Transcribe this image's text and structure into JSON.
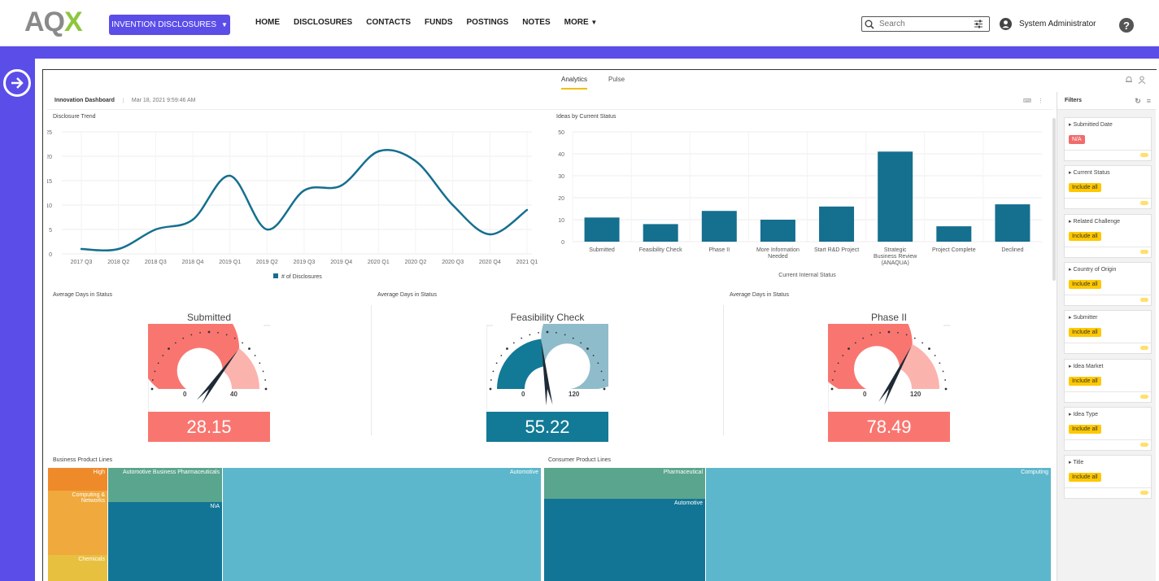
{
  "header": {
    "logo": "AQX",
    "app_button": "INVENTION DISCLOSURES",
    "nav": [
      "HOME",
      "DISCLOSURES",
      "CONTACTS",
      "FUNDS",
      "POSTINGS",
      "NOTES",
      "MORE"
    ],
    "search_placeholder": "Search",
    "user": "System Administrator"
  },
  "tabs": {
    "analytics": "Analytics",
    "pulse": "Pulse"
  },
  "dashboard": {
    "title": "Innovation Dashboard",
    "date": "Mar 18, 2021 9:59:46 AM"
  },
  "charts": {
    "trend_title": "Disclosure Trend",
    "status_title": "Ideas by Current Status",
    "status_xlabel": "Current Internal Status",
    "trend_legend": "# of Disclosures",
    "avg_days_title": "Average Days in Status",
    "business_title": "Business Product Lines",
    "consumer_title": "Consumer Product Lines"
  },
  "chart_data": [
    {
      "type": "line",
      "title": "Disclosure Trend",
      "categories": [
        "2017 Q3",
        "2018 Q2",
        "2018 Q3",
        "2018 Q4",
        "2019 Q1",
        "2019 Q2",
        "2019 Q3",
        "2019 Q4",
        "2020 Q1",
        "2020 Q2",
        "2020 Q3",
        "2020 Q4",
        "2021 Q1"
      ],
      "series": [
        {
          "name": "# of Disclosures",
          "values": [
            1,
            1,
            5,
            7,
            16,
            5,
            13,
            14,
            21,
            19,
            10,
            4,
            9
          ]
        }
      ],
      "yticks": [
        0,
        5,
        10,
        15,
        20,
        25
      ],
      "ylim": [
        0,
        25
      ],
      "color": "#156f8f",
      "legend": "bottom"
    },
    {
      "type": "bar",
      "title": "Ideas by Current Status",
      "categories": [
        "Submitted",
        "Feasibility Check",
        "Phase II",
        "More Information Needed",
        "Start R&D Project",
        "Strategic Business Review (ANAQUA)",
        "Project Complete",
        "Declined"
      ],
      "values": [
        11,
        8,
        14,
        10,
        16,
        41,
        7,
        17
      ],
      "yticks": [
        0,
        10,
        20,
        30,
        40,
        50
      ],
      "ylim": [
        0,
        50
      ],
      "xlabel": "Current Internal Status",
      "color": "#156f8f"
    }
  ],
  "gauges": [
    {
      "title": "Submitted",
      "value": "28.15",
      "min": "0",
      "max": "40",
      "fraction": 0.704,
      "color": "#f97670",
      "light": "#fbb3ae"
    },
    {
      "title": "Feasibility Check",
      "value": "55.22",
      "min": "0",
      "max": "120",
      "fraction": 0.46,
      "color": "#127a96",
      "light": "#8fbccb"
    },
    {
      "title": "Phase II",
      "value": "78.49",
      "min": "0",
      "max": "120",
      "fraction": 0.654,
      "color": "#f97670",
      "light": "#fbb3ae"
    }
  ],
  "treemap_business": [
    "High",
    "Computing & Networks",
    "Chemicals",
    "Automotive Business Pharmaceuticals",
    "N\\A",
    "Automotive"
  ],
  "treemap_consumer": [
    "Pharmaceutical",
    "Automotive",
    "Computing"
  ],
  "filters": {
    "title": "Filters",
    "items": [
      {
        "label": "Submitted Date",
        "chip": "N/A",
        "kind": "na"
      },
      {
        "label": "Current Status",
        "chip": "Include all",
        "kind": "all"
      },
      {
        "label": "Related Challenge",
        "chip": "Include all",
        "kind": "all"
      },
      {
        "label": "Country of Origin",
        "chip": "Include all",
        "kind": "all"
      },
      {
        "label": "Submitter",
        "chip": "Include all",
        "kind": "all"
      },
      {
        "label": "Idea Market",
        "chip": "Include all",
        "kind": "all"
      },
      {
        "label": "Idea Type",
        "chip": "Include all",
        "kind": "all"
      },
      {
        "label": "Title",
        "chip": "Include all",
        "kind": "all"
      }
    ]
  }
}
